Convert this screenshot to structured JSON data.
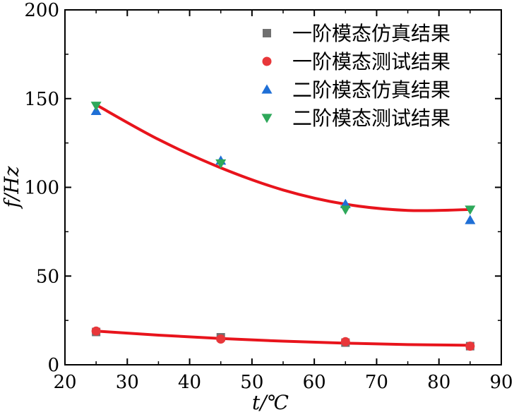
{
  "chart_data": {
    "type": "scatter",
    "xlabel": "t/℃",
    "ylabel": "f/Hz",
    "xlim": [
      20,
      90
    ],
    "ylim": [
      0,
      200
    ],
    "xticks": [
      20,
      30,
      40,
      50,
      60,
      70,
      80,
      90
    ],
    "yticks": [
      0,
      50,
      100,
      150,
      200
    ],
    "legend_position": "top-right",
    "grid": false,
    "series": [
      {
        "name": "一阶模态仿真结果",
        "marker": "square",
        "color": "#707070",
        "x": [
          25,
          45,
          65,
          85
        ],
        "y": [
          18.5,
          15.5,
          12.5,
          10.5
        ]
      },
      {
        "name": "一阶模态测试结果",
        "marker": "circle",
        "color": "#e8373a",
        "x": [
          25,
          45,
          65,
          85
        ],
        "y": [
          19,
          14.5,
          13,
          10.5
        ]
      },
      {
        "name": "二阶模态仿真结果",
        "marker": "triangle-up",
        "color": "#1f6fd6",
        "x": [
          25,
          45,
          65,
          85
        ],
        "y": [
          143,
          115,
          90.5,
          81.5
        ]
      },
      {
        "name": "二阶模态测试结果",
        "marker": "triangle-down",
        "color": "#2ea85a",
        "x": [
          25,
          45,
          65,
          85
        ],
        "y": [
          146,
          113.5,
          87.5,
          87.5
        ]
      }
    ],
    "fit_lines": [
      {
        "color": "#e8141c",
        "x": [
          25,
          35,
          45,
          55,
          65,
          75,
          85
        ],
        "y": [
          146.5,
          127,
          111,
          98.5,
          90.5,
          87,
          87.5
        ]
      },
      {
        "color": "#e8141c",
        "x": [
          25,
          35,
          45,
          55,
          65,
          75,
          85
        ],
        "y": [
          19,
          16.7,
          14.8,
          13.3,
          12.2,
          11.4,
          11
        ]
      }
    ]
  }
}
